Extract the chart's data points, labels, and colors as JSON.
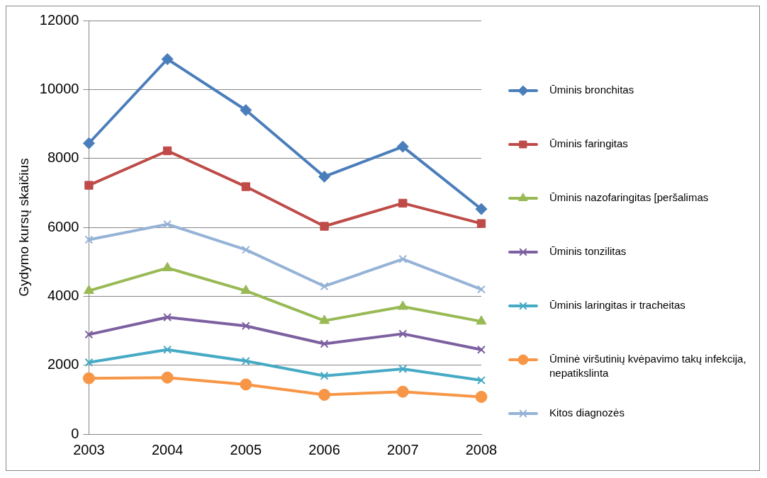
{
  "chart_data": {
    "type": "line",
    "ylabel": "Gydymo kursų skaičius",
    "categories": [
      "2003",
      "2004",
      "2005",
      "2006",
      "2007",
      "2008"
    ],
    "ylim": [
      0,
      12000
    ],
    "yticks": [
      0,
      2000,
      4000,
      6000,
      8000,
      10000,
      12000
    ],
    "grid": "y",
    "legend": "right",
    "line_style": "solid",
    "series": [
      {
        "name": "Ūminis bronchitas",
        "color": "#4a7ebb",
        "marker": "diamond",
        "values": [
          8440,
          10880,
          9400,
          7470,
          8340,
          6530
        ]
      },
      {
        "name": "Ūminis faringitas",
        "color": "#be4b48",
        "marker": "square",
        "values": [
          7220,
          8220,
          7180,
          6030,
          6700,
          6110
        ]
      },
      {
        "name": "Ūminis nazofaringitas [peršalimas",
        "color": "#98b954",
        "marker": "triangle",
        "values": [
          4160,
          4820,
          4160,
          3290,
          3700,
          3270
        ]
      },
      {
        "name": "Ūminis tonzilitas",
        "color": "#7d60a0",
        "marker": "cross",
        "values": [
          2890,
          3390,
          3140,
          2620,
          2910,
          2450
        ]
      },
      {
        "name": "Ūminis laringitas ir tracheitas",
        "color": "#46aac5",
        "marker": "cross",
        "values": [
          2080,
          2450,
          2120,
          1690,
          1890,
          1560
        ]
      },
      {
        "name": "Ūminė viršutinių kvėpavimo takų infekcija, nepatikslinta",
        "color": "#f79646",
        "marker": "circle",
        "values": [
          1620,
          1640,
          1440,
          1140,
          1230,
          1080
        ]
      },
      {
        "name": "Kitos diagnozės",
        "color": "#95b3d7",
        "marker": "cross",
        "values": [
          5640,
          6090,
          5350,
          4290,
          5080,
          4200
        ]
      }
    ]
  }
}
